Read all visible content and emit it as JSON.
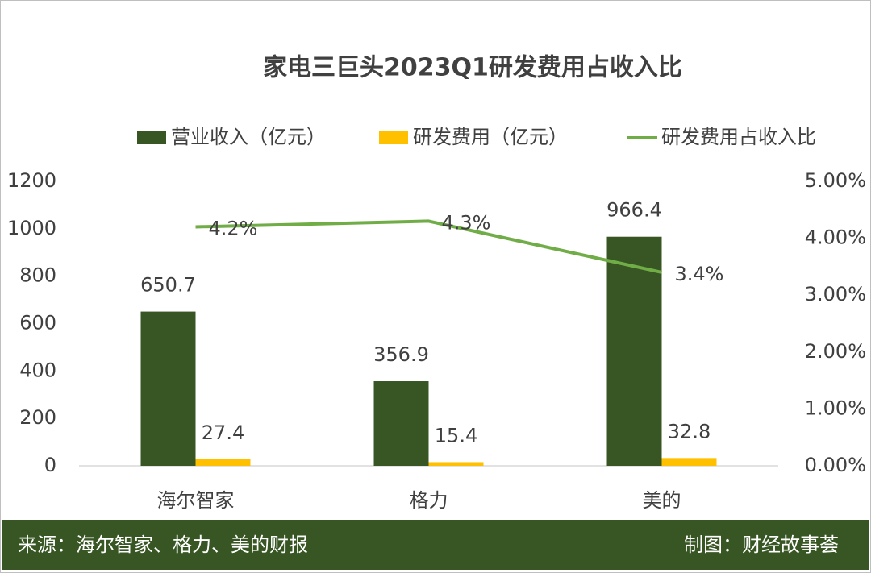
{
  "chart_data": {
    "type": "bar-line",
    "title": "家电三巨头2023Q1研发费用占收入比",
    "categories": [
      "海尔智家",
      "格力",
      "美的"
    ],
    "series": [
      {
        "name": "营业收入（亿元）",
        "color": "#375623",
        "type": "bar",
        "values": [
          650.7,
          356.9,
          966.4
        ]
      },
      {
        "name": "研发费用（亿元）",
        "color": "#ffc000",
        "type": "bar",
        "values": [
          27.4,
          15.4,
          32.8
        ]
      },
      {
        "name": "研发费用占收入比",
        "color": "#70ad47",
        "type": "line",
        "axis": "y2",
        "values": [
          4.2,
          4.3,
          3.4
        ],
        "value_labels": [
          "4.2%",
          "4.3%",
          "3.4%"
        ]
      }
    ],
    "ylim": [
      0,
      1200
    ],
    "yticks": [
      0,
      200,
      400,
      600,
      800,
      1000,
      1200
    ],
    "y2lim": [
      0,
      5
    ],
    "y2ticks": [
      {
        "value": 0,
        "label": "0.00%"
      },
      {
        "value": 1,
        "label": "1.00%"
      },
      {
        "value": 2,
        "label": "2.00%"
      },
      {
        "value": 3,
        "label": "3.00%"
      },
      {
        "value": 4,
        "label": "4.00%"
      },
      {
        "value": 5,
        "label": "5.00%"
      }
    ],
    "grid": false,
    "legend": "top",
    "footer_left": "来源：海尔智家、格力、美的财报",
    "footer_right": "制图：财经故事荟"
  }
}
